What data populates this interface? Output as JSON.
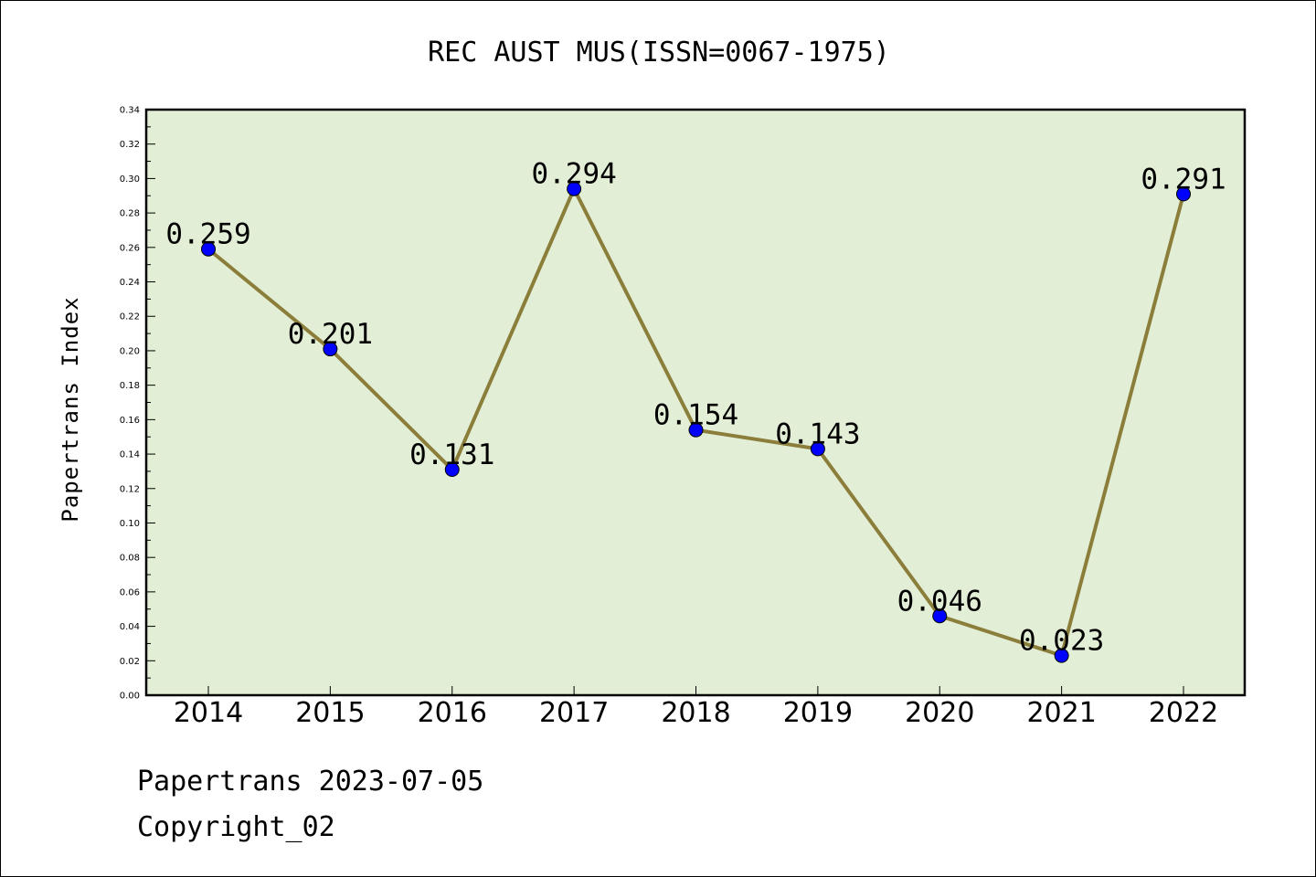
{
  "chart_data": {
    "type": "line",
    "title": "REC AUST MUS(ISSN=0067-1975)",
    "ylabel": "Papertrans Index",
    "xlabel": "",
    "categories": [
      "2014",
      "2015",
      "2016",
      "2017",
      "2018",
      "2019",
      "2020",
      "2021",
      "2022"
    ],
    "values": [
      0.259,
      0.201,
      0.131,
      0.294,
      0.154,
      0.143,
      0.046,
      0.023,
      0.291
    ],
    "data_labels": [
      "0.259",
      "0.201",
      "0.131",
      "0.294",
      "0.154",
      "0.143",
      "0.046",
      "0.023",
      "0.291"
    ],
    "ylim": [
      0,
      0.34
    ],
    "yticks": [
      "0.00",
      "0.02",
      "0.04",
      "0.06",
      "0.08",
      "0.10",
      "0.12",
      "0.14",
      "0.16",
      "0.18",
      "0.20",
      "0.22",
      "0.24",
      "0.26",
      "0.28",
      "0.30",
      "0.32",
      "0.34"
    ],
    "grid": false,
    "colors": {
      "plot_background": "#e2efd6",
      "line": "#8b7d3a",
      "marker": "#0000ff"
    }
  },
  "footer": {
    "line1": "Papertrans 2023-07-05",
    "line2": "Copyright_02"
  }
}
